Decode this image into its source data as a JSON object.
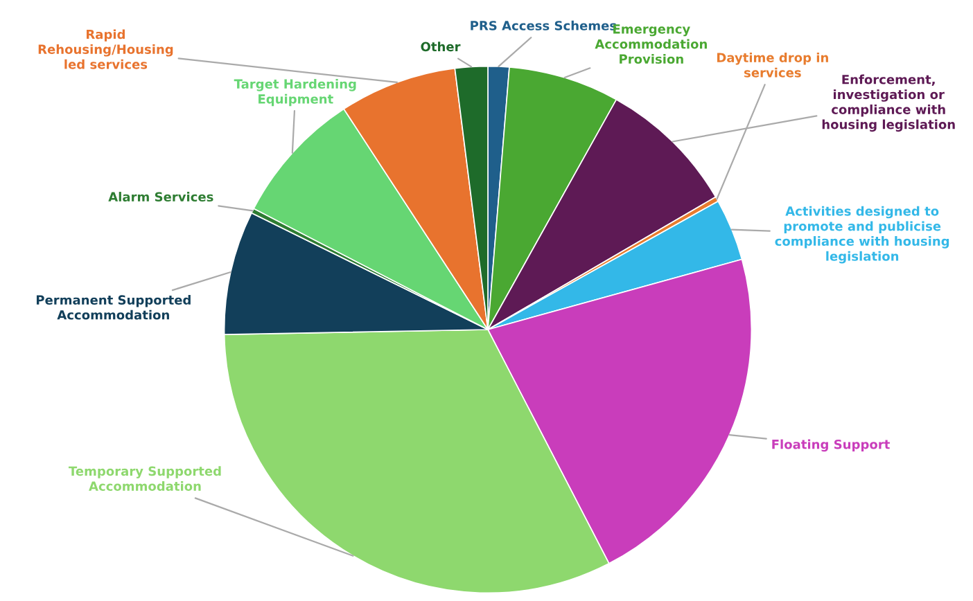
{
  "chart_data": {
    "type": "pie",
    "categories": [
      "PRS Access Schemes",
      "Emergency\nAccommodation\nProvision",
      "Enforcement,\ninvestigation or\ncompliance with\nhousing legislation",
      "Daytime drop in\nservices",
      "Activities designed to\npromote and publicise\ncompliance with housing\nlegislation",
      "Floating Support",
      "Temporary Supported\nAccommodation",
      "Permanent Supported\nAccommodation",
      "Alarm Services",
      "Target Hardening\nEquipment",
      "Rapid\nRehousing/Housing\nled services",
      "Other"
    ],
    "values": [
      1.3,
      6.8,
      8.5,
      0.3,
      3.8,
      21.7,
      32.3,
      7.6,
      0.3,
      8.2,
      7.2,
      2.0
    ],
    "colors": [
      "#1f5f8b",
      "#4aa832",
      "#5e1a55",
      "#e87c2e",
      "#33b8e8",
      "#c93dbb",
      "#8ed86e",
      "#123f5a",
      "#2e7d32",
      "#66d673",
      "#e8732e",
      "#1e6b2a"
    ],
    "legend": false
  }
}
